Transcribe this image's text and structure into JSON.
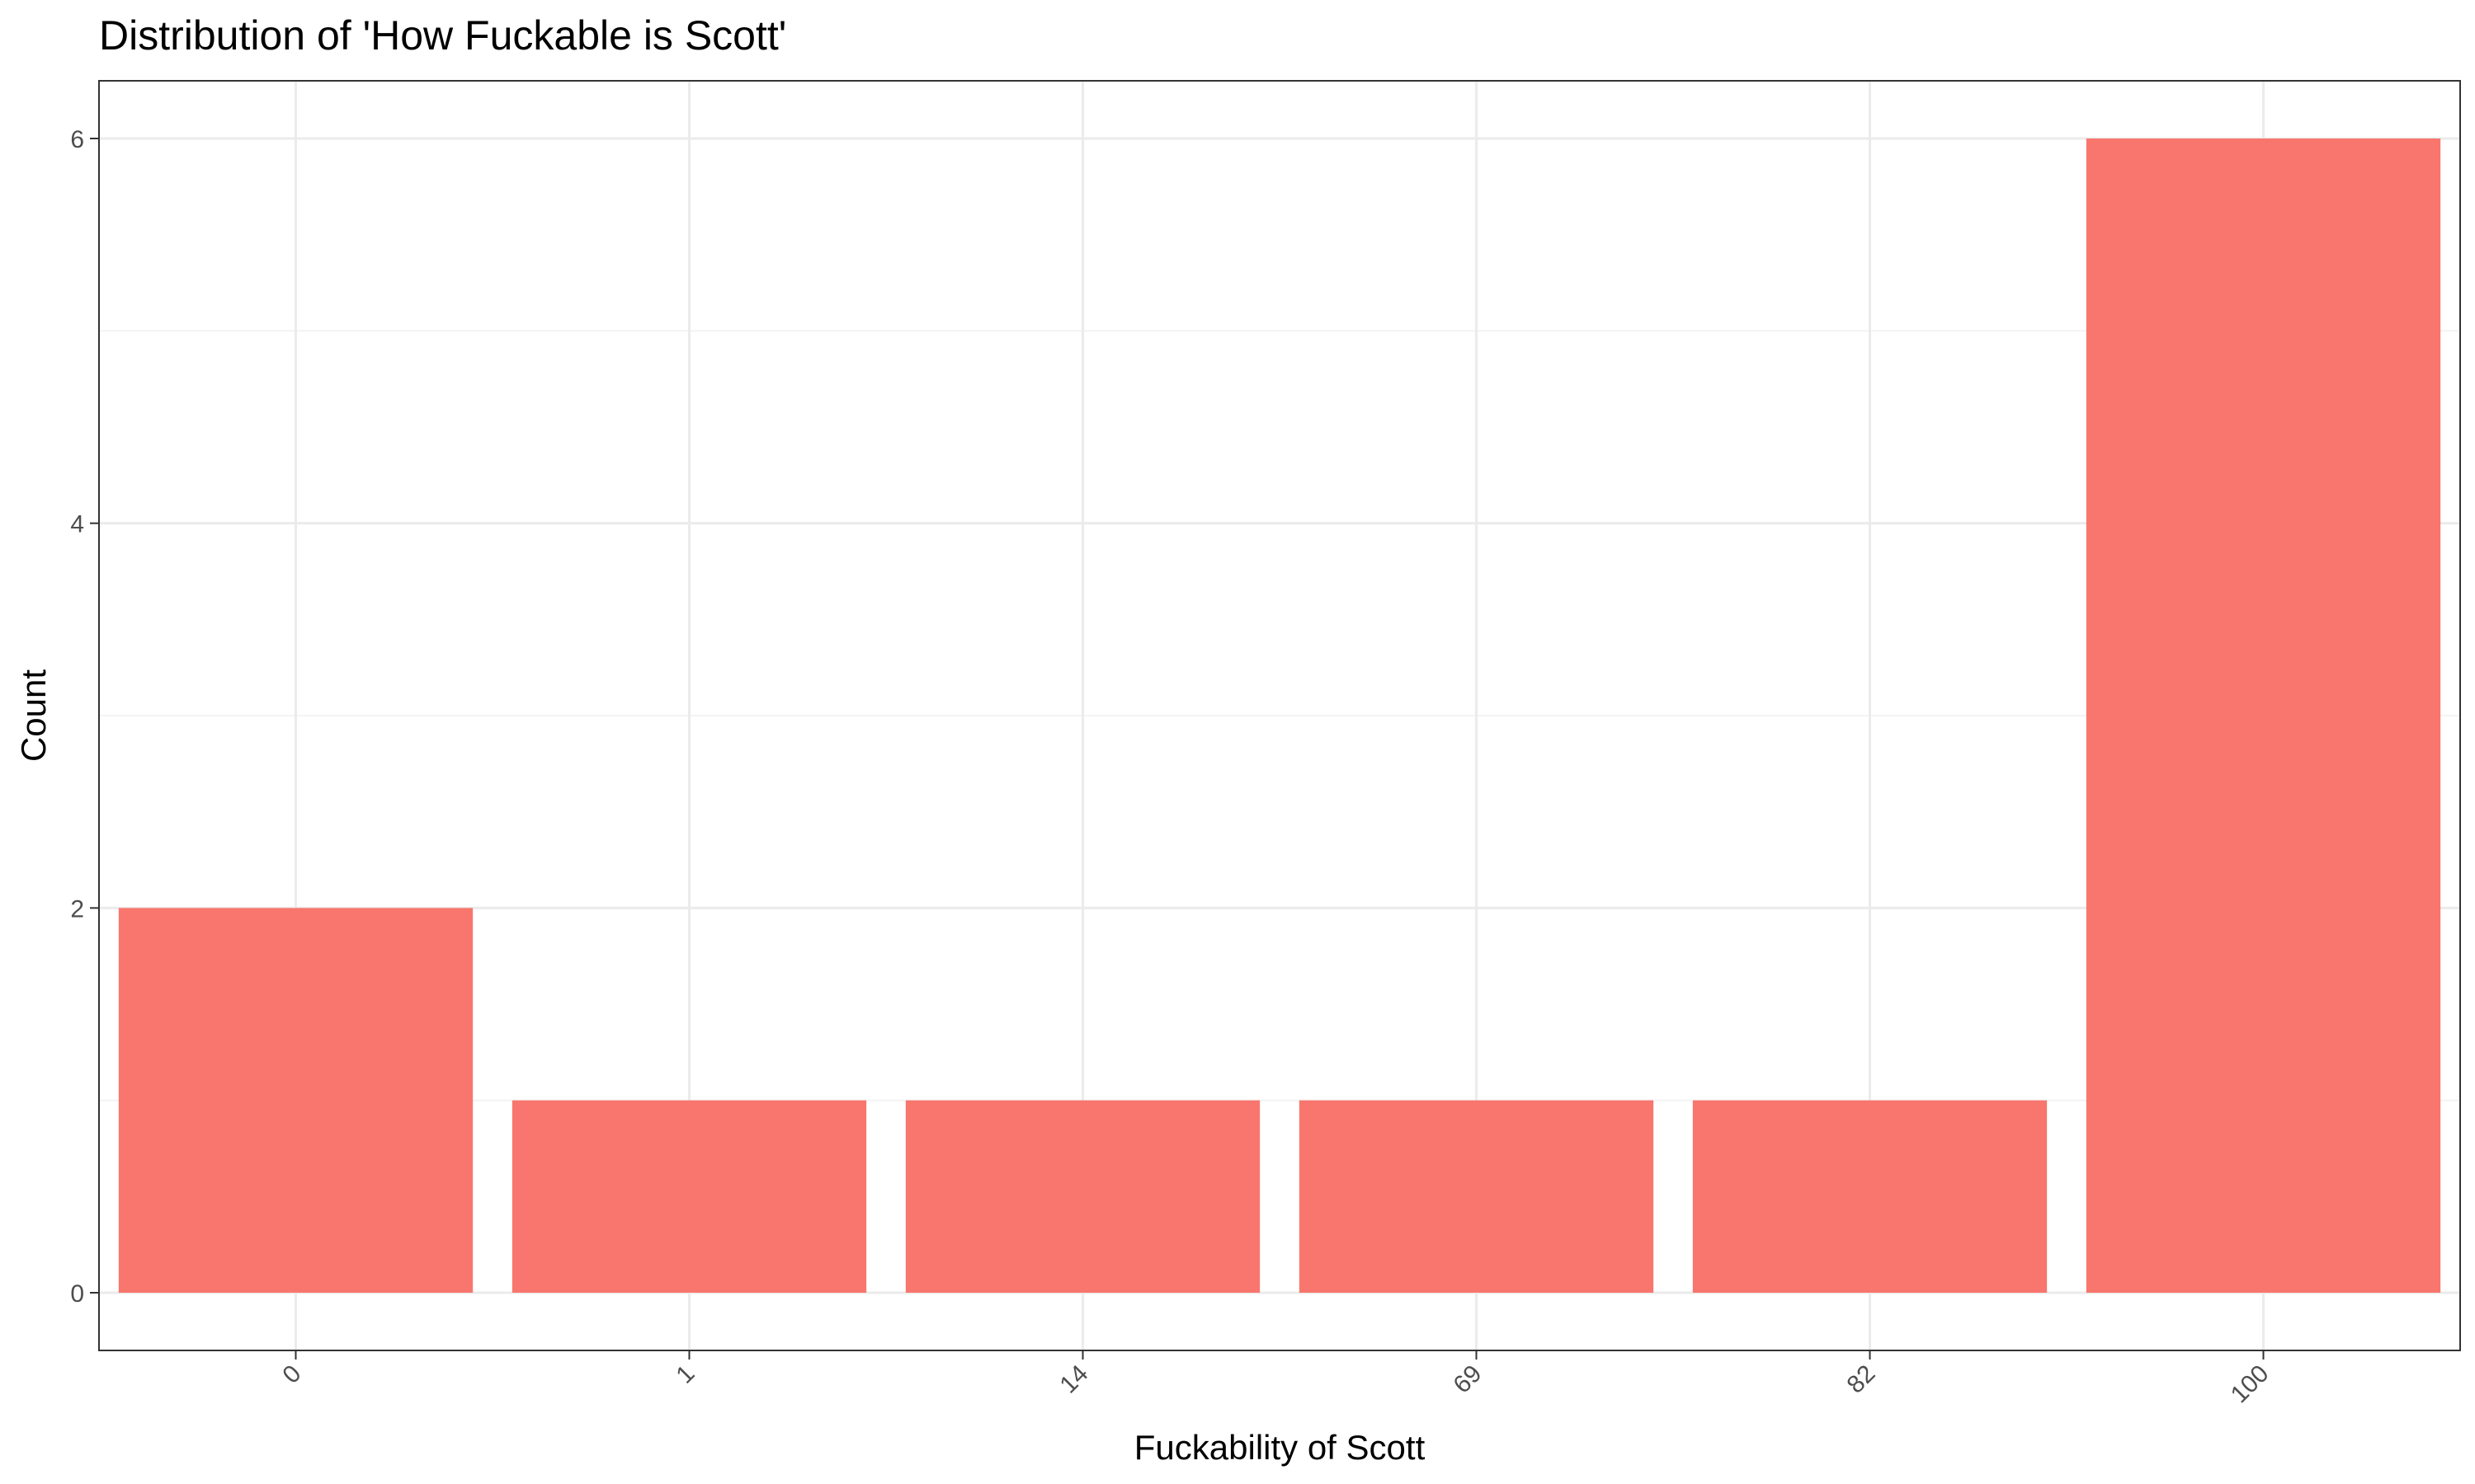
{
  "chart_data": {
    "type": "bar",
    "title": "Distribution of 'How Fuckable is Scott'",
    "xlabel": "Fuckability of Scott",
    "ylabel": "Count",
    "categories": [
      "0",
      "1",
      "14",
      "69",
      "82",
      "100"
    ],
    "values": [
      2,
      1,
      1,
      1,
      1,
      6
    ],
    "ylim": [
      -0.3,
      6.3
    ],
    "yticks": [
      0,
      2,
      4,
      6
    ],
    "grid": true,
    "legend": "none",
    "bar_color": "#F8766D"
  }
}
